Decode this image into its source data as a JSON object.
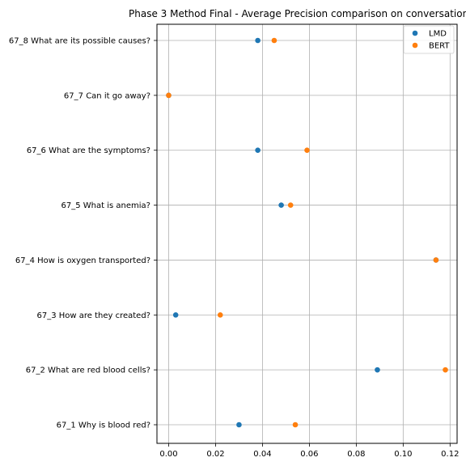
{
  "chart_data": {
    "type": "scatter",
    "title": "Phase 3 Method Final - Average Precision comparison on conversation 67",
    "xlabel": "",
    "ylabel": "",
    "categories": [
      "67_1 Why is blood red?",
      "67_2 What are red blood cells?",
      "67_3 How are they created?",
      "67_4 How is oxygen transported?",
      "67_5 What is anemia?",
      "67_6 What are the symptoms?",
      "67_7 Can it go away?",
      "67_8 What are its possible causes?"
    ],
    "xlim": [
      -0.005,
      0.123
    ],
    "xticks": [
      "0.00",
      "0.02",
      "0.04",
      "0.06",
      "0.08",
      "0.10",
      "0.12"
    ],
    "xtick_values": [
      0.0,
      0.02,
      0.04,
      0.06,
      0.08,
      0.1,
      0.12
    ],
    "grid": true,
    "legend_position": "top-right",
    "series": [
      {
        "name": "LMD",
        "color": "#1f77b4",
        "values": [
          0.03,
          0.089,
          0.003,
          0.114,
          0.048,
          0.038,
          0.0,
          0.038
        ]
      },
      {
        "name": "BERT",
        "color": "#ff7f0e",
        "values": [
          0.054,
          0.118,
          0.022,
          0.114,
          0.052,
          0.059,
          0.0,
          0.045
        ]
      }
    ]
  }
}
